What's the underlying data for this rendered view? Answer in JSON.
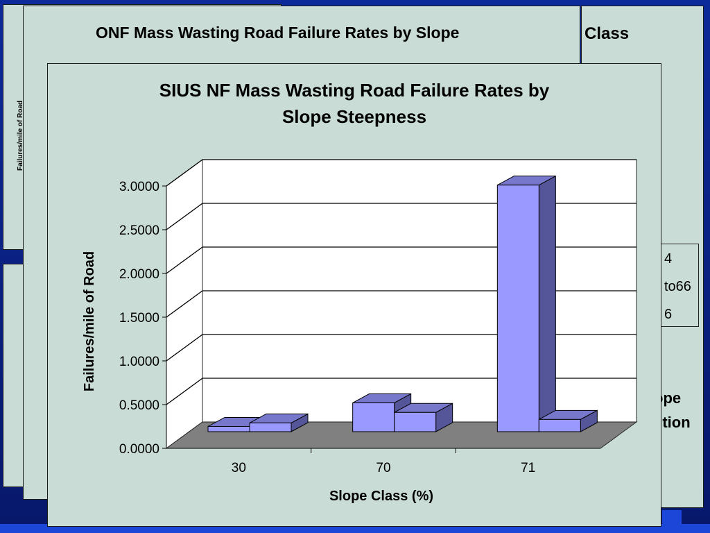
{
  "slide": {
    "background_color": "#0a1f7a",
    "panel_color": "#c9ddd6",
    "back_panel_1": {
      "title": "ONF Mass Wasting Road Failure Rates by Slope",
      "ylabel": "Failures/mile of Road"
    },
    "back_panel_2": {
      "title_fragment": "Class",
      "legend_fragments": [
        "4",
        "to66",
        "6"
      ],
      "text_fragments": [
        "ope",
        "sition"
      ]
    }
  },
  "chart_data": {
    "type": "bar",
    "title_line1": "SIUS NF Mass Wasting Road Failure Rates by",
    "title_line2": "Slope Steepness",
    "xlabel": "Slope Class (%)",
    "ylabel": "Failures/mile of Road",
    "categories": [
      "30",
      "70",
      "71"
    ],
    "series": [
      {
        "values": [
          0.06,
          0.33,
          2.82
        ],
        "color": "#9999ff",
        "side_color": "#555599",
        "top_color": "#7777cc"
      },
      {
        "values": [
          0.1,
          0.22,
          0.14
        ],
        "color": "#9999ff",
        "side_color": "#555599",
        "top_color": "#7777cc"
      }
    ],
    "ylim": [
      0,
      3
    ],
    "yticks": [
      "0.0000",
      "0.5000",
      "1.0000",
      "1.5000",
      "2.0000",
      "2.5000",
      "3.0000"
    ],
    "grid": true,
    "legend": "none"
  }
}
